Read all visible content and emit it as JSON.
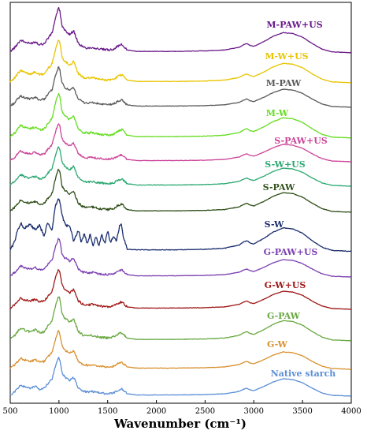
{
  "chart_data": {
    "type": "line",
    "xlabel": "Wavenumber (cm⁻¹)",
    "xlim": [
      500,
      4000
    ],
    "xticks": [
      500,
      1000,
      1500,
      2000,
      2500,
      3000,
      3500,
      4000
    ],
    "y_ticks_shown": false,
    "grid": false,
    "legend": "inline labels above each curve (right side)",
    "series": [
      {
        "name": "M-PAW+US",
        "color": "#6a1a8a"
      },
      {
        "name": "M-W+US",
        "color": "#e8c400"
      },
      {
        "name": "M-PAW",
        "color": "#5a5a5a"
      },
      {
        "name": "M-W",
        "color": "#66dd22"
      },
      {
        "name": "S-PAW+US",
        "color": "#cc4499"
      },
      {
        "name": "S-W+US",
        "color": "#2aa870"
      },
      {
        "name": "S-PAW",
        "color": "#2f4f1a"
      },
      {
        "name": "S-W",
        "color": "#1a2e6e"
      },
      {
        "name": "G-PAW+US",
        "color": "#7b3fb0"
      },
      {
        "name": "G-W+US",
        "color": "#a01818"
      },
      {
        "name": "G-PAW",
        "color": "#6aa842"
      },
      {
        "name": "G-W",
        "color": "#d99030"
      },
      {
        "name": "Native starch",
        "color": "#5b8fd6"
      }
    ],
    "spectrum_profile": {
      "note": "typical starch FTIR absorbance shape shared by all series",
      "x": [
        500,
        550,
        575,
        610,
        640,
        700,
        760,
        800,
        850,
        880,
        930,
        960,
        995,
        1010,
        1030,
        1060,
        1080,
        1110,
        1150,
        1200,
        1250,
        1300,
        1340,
        1370,
        1420,
        1460,
        1500,
        1560,
        1600,
        1645,
        1700,
        1800,
        2000,
        2200,
        2500,
        2700,
        2850,
        2900,
        2930,
        2960,
        3000,
        3100,
        3200,
        3300,
        3400,
        3500,
        3600,
        3700,
        3800,
        4000
      ],
      "y": [
        0.05,
        0.14,
        0.22,
        0.3,
        0.26,
        0.22,
        0.26,
        0.2,
        0.22,
        0.32,
        0.45,
        0.75,
        1.0,
        0.92,
        0.62,
        0.5,
        0.48,
        0.42,
        0.5,
        0.22,
        0.14,
        0.12,
        0.14,
        0.12,
        0.1,
        0.09,
        0.08,
        0.1,
        0.16,
        0.2,
        0.08,
        0.05,
        0.05,
        0.05,
        0.06,
        0.08,
        0.14,
        0.2,
        0.22,
        0.18,
        0.16,
        0.26,
        0.38,
        0.46,
        0.44,
        0.36,
        0.22,
        0.1,
        0.04,
        0.02
      ]
    },
    "sw_profile": {
      "note": "S-W series shows stronger 1200-1650 structure",
      "x": [
        500,
        550,
        575,
        610,
        640,
        700,
        760,
        800,
        850,
        880,
        930,
        960,
        995,
        1010,
        1030,
        1060,
        1080,
        1110,
        1150,
        1200,
        1230,
        1260,
        1290,
        1320,
        1350,
        1380,
        1410,
        1440,
        1470,
        1500,
        1530,
        1560,
        1590,
        1620,
        1640,
        1660,
        1700,
        1800,
        2000,
        2200,
        2500,
        2700,
        2850,
        2900,
        2930,
        2960,
        3000,
        3100,
        3200,
        3300,
        3400,
        3500,
        3600,
        3700,
        3800,
        4000
      ],
      "y": [
        0.05,
        0.22,
        0.42,
        0.55,
        0.45,
        0.52,
        0.42,
        0.5,
        0.3,
        0.55,
        0.42,
        0.85,
        1.0,
        0.95,
        0.7,
        0.55,
        0.48,
        0.52,
        0.2,
        0.42,
        0.18,
        0.36,
        0.16,
        0.34,
        0.12,
        0.3,
        0.14,
        0.34,
        0.16,
        0.4,
        0.18,
        0.3,
        0.22,
        0.48,
        0.52,
        0.3,
        0.06,
        0.05,
        0.05,
        0.05,
        0.06,
        0.08,
        0.14,
        0.2,
        0.22,
        0.18,
        0.16,
        0.26,
        0.38,
        0.46,
        0.44,
        0.36,
        0.22,
        0.1,
        0.04,
        0.02
      ]
    }
  }
}
